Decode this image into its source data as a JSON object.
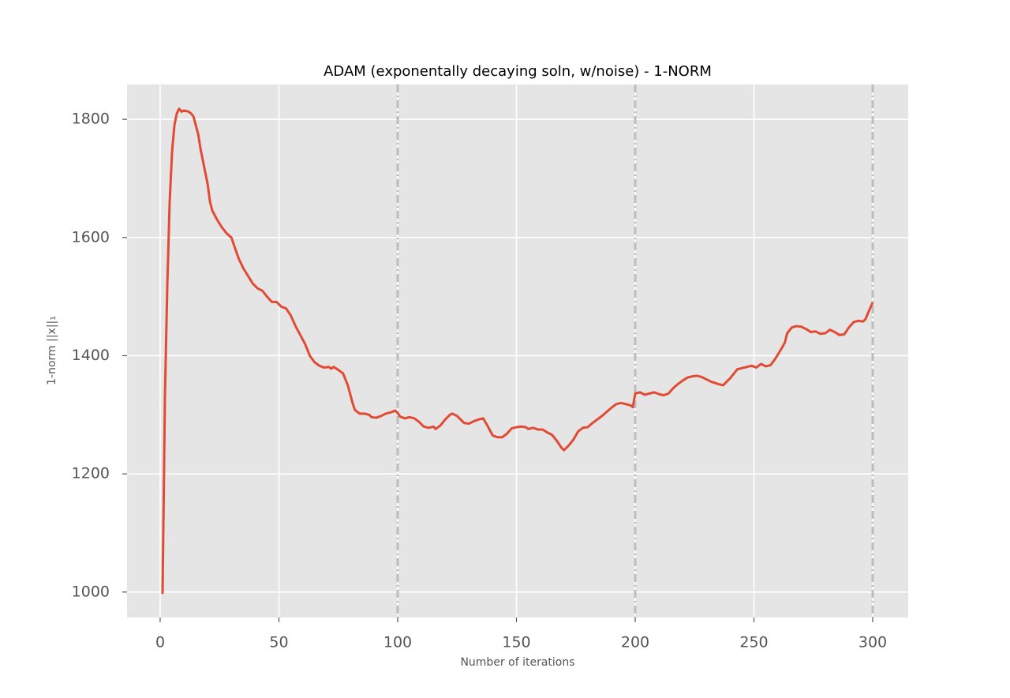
{
  "chart_data": {
    "type": "line",
    "title": "ADAM (exponentally decaying soln, w/noise) - 1-NORM",
    "x_label": "Number of iterations",
    "y_label": "1-norm ||x||₁",
    "xlim": [
      -13.95,
      314.95
    ],
    "ylim": [
      957,
      1859
    ],
    "xticks": [
      0,
      50,
      100,
      150,
      200,
      250,
      300
    ],
    "yticks": [
      1000,
      1200,
      1400,
      1600,
      1800
    ],
    "grid": true,
    "vlines": [
      100,
      200,
      300
    ],
    "vline_color": "#bdbdbd",
    "series": [
      {
        "color": "#e24a33",
        "x": [
          1,
          2,
          3,
          4,
          5,
          6,
          7,
          8,
          9,
          10,
          12,
          13,
          14,
          15,
          16,
          17,
          18,
          20,
          21,
          22,
          24,
          26,
          28,
          30,
          31,
          33,
          35,
          37,
          39,
          41,
          43,
          45,
          47,
          49,
          51,
          53,
          55,
          57,
          59,
          61,
          63,
          65,
          67,
          69,
          71,
          72,
          73,
          75,
          77,
          79,
          81,
          82,
          84,
          86,
          88,
          89,
          91,
          93,
          95,
          97,
          99,
          100,
          101,
          103,
          105,
          107,
          109,
          111,
          113,
          115,
          116,
          118,
          120,
          122,
          123,
          125,
          126,
          128,
          130,
          132,
          134,
          136,
          138,
          140,
          142,
          144,
          146,
          148,
          150,
          152,
          154,
          155,
          157,
          159,
          161,
          163,
          165,
          167,
          169,
          170,
          172,
          174,
          176,
          178,
          180,
          182,
          184,
          186,
          188,
          190,
          192,
          194,
          196,
          198,
          199,
          200,
          202,
          204,
          206,
          208,
          210,
          212,
          214,
          216,
          218,
          220,
          222,
          224,
          226,
          228,
          230,
          232,
          235,
          237,
          240,
          243,
          246,
          249,
          251,
          253,
          255,
          257,
          259,
          261,
          263,
          264,
          266,
          268,
          270,
          272,
          274,
          276,
          278,
          280,
          282,
          284,
          286,
          288,
          290,
          292,
          294,
          296,
          297,
          298,
          300
        ],
        "values": [
          997,
          1330,
          1520,
          1660,
          1745,
          1790,
          1810,
          1818,
          1813,
          1815,
          1813,
          1810,
          1805,
          1790,
          1775,
          1750,
          1730,
          1690,
          1660,
          1645,
          1630,
          1617,
          1607,
          1600,
          1588,
          1565,
          1548,
          1535,
          1522,
          1514,
          1510,
          1500,
          1491,
          1491,
          1483,
          1480,
          1468,
          1450,
          1435,
          1420,
          1400,
          1389,
          1383,
          1380,
          1381,
          1378,
          1381,
          1376,
          1370,
          1350,
          1320,
          1308,
          1302,
          1302,
          1300,
          1296,
          1295,
          1298,
          1302,
          1304,
          1307,
          1303,
          1297,
          1294,
          1296,
          1294,
          1288,
          1280,
          1278,
          1280,
          1276,
          1282,
          1292,
          1300,
          1302,
          1298,
          1294,
          1286,
          1285,
          1289,
          1292,
          1294,
          1280,
          1265,
          1262,
          1262,
          1268,
          1277,
          1279,
          1280,
          1279,
          1276,
          1278,
          1275,
          1275,
          1270,
          1266,
          1256,
          1244,
          1240,
          1248,
          1258,
          1272,
          1278,
          1279,
          1286,
          1292,
          1298,
          1305,
          1312,
          1318,
          1320,
          1318,
          1316,
          1313,
          1336,
          1338,
          1334,
          1336,
          1338,
          1335,
          1333,
          1336,
          1345,
          1352,
          1358,
          1363,
          1365,
          1366,
          1364,
          1360,
          1356,
          1352,
          1350,
          1362,
          1377,
          1380,
          1383,
          1380,
          1386,
          1382,
          1384,
          1395,
          1408,
          1422,
          1438,
          1448,
          1450,
          1449,
          1445,
          1440,
          1441,
          1437,
          1438,
          1444,
          1440,
          1435,
          1436,
          1448,
          1457,
          1459,
          1458,
          1462,
          1472,
          1490
        ]
      }
    ]
  }
}
